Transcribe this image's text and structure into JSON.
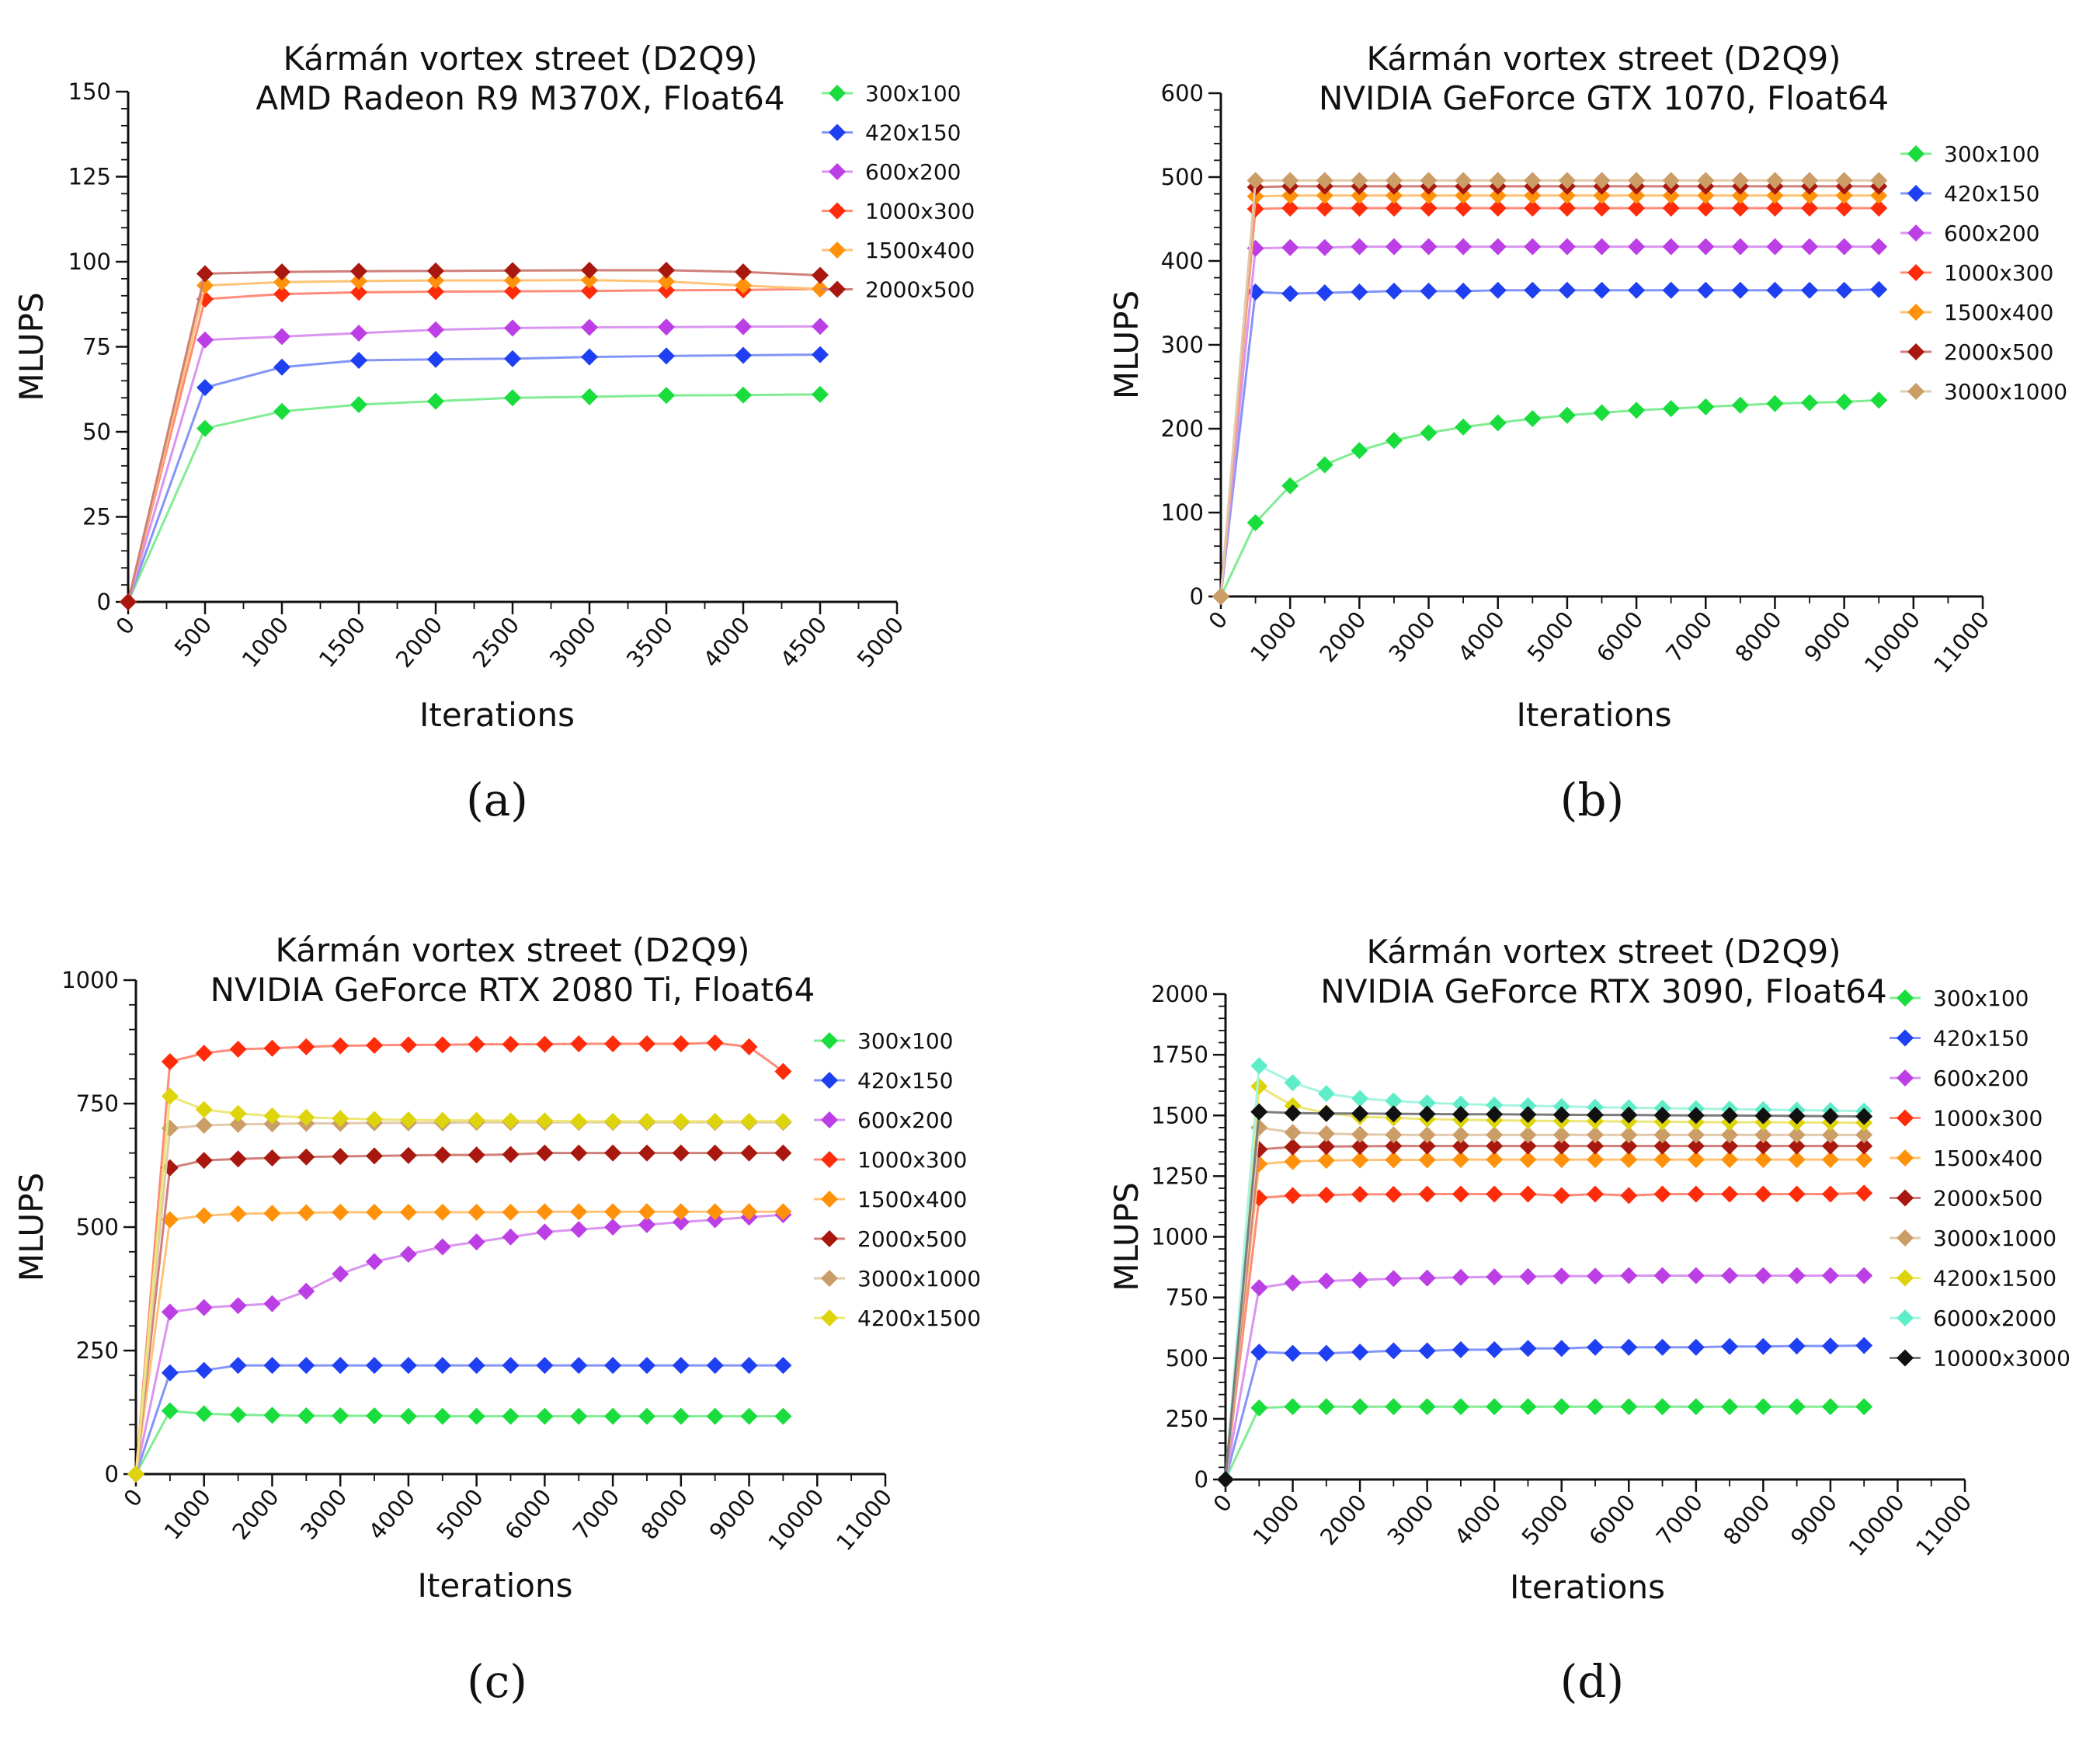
{
  "colors": {
    "300x100": "#19dd3c",
    "420x150": "#1f3ff2",
    "600x200": "#bc3fe6",
    "1000x300": "#ff2c0c",
    "1500x400": "#ff920a",
    "2000x500": "#a8180e",
    "3000x1000": "#cb9e68",
    "4200x1500": "#ded40c",
    "6000x2000": "#5eedc8",
    "10000x3000": "#111111"
  },
  "chart_data": [
    {
      "type": "line",
      "panel_label": "(a)",
      "title_lines": [
        "Kármán vortex street (D2Q9)",
        "AMD Radeon R9 M370X, Float64"
      ],
      "xlabel": "Iterations",
      "ylabel": "MLUPS",
      "xlim": [
        0,
        5000
      ],
      "ylim": [
        0,
        150
      ],
      "xticks": [
        "0",
        "500",
        "1000",
        "1500",
        "2000",
        "2500",
        "3000",
        "3500",
        "4000",
        "4500",
        "5000"
      ],
      "yticks": [
        "0",
        "25",
        "50",
        "75",
        "100",
        "125",
        "150"
      ],
      "x": [
        0,
        500,
        1000,
        1500,
        2000,
        2500,
        3000,
        3500,
        4000,
        4500
      ],
      "series": [
        {
          "name": "300x100",
          "values": [
            0,
            51,
            56,
            58,
            59,
            60,
            60.3,
            60.7,
            60.8,
            61
          ]
        },
        {
          "name": "420x150",
          "values": [
            0,
            63,
            69,
            71,
            71.3,
            71.5,
            72,
            72.3,
            72.5,
            72.7
          ]
        },
        {
          "name": "600x200",
          "values": [
            0,
            77,
            78,
            79,
            80,
            80.5,
            80.7,
            80.8,
            80.9,
            81
          ]
        },
        {
          "name": "1000x300",
          "values": [
            0,
            89,
            90.5,
            91,
            91.2,
            91.3,
            91.4,
            91.6,
            91.7,
            92
          ]
        },
        {
          "name": "1500x400",
          "values": [
            0,
            93,
            94,
            94.3,
            94.5,
            94.5,
            94.6,
            94.2,
            93,
            92
          ]
        },
        {
          "name": "2000x500",
          "values": [
            0,
            96.5,
            97,
            97.2,
            97.3,
            97.4,
            97.5,
            97.5,
            97,
            96
          ]
        }
      ]
    },
    {
      "type": "line",
      "panel_label": "(b)",
      "title_lines": [
        "Kármán vortex street (D2Q9)",
        "NVIDIA GeForce GTX 1070, Float64"
      ],
      "xlabel": "Iterations",
      "ylabel": "MLUPS",
      "xlim": [
        0,
        11000
      ],
      "ylim": [
        0,
        600
      ],
      "xticks": [
        "0",
        "1000",
        "2000",
        "3000",
        "4000",
        "5000",
        "6000",
        "7000",
        "8000",
        "9000",
        "10000",
        "11000"
      ],
      "yticks": [
        "0",
        "100",
        "200",
        "300",
        "400",
        "500",
        "600"
      ],
      "x": [
        0,
        500,
        1000,
        1500,
        2000,
        2500,
        3000,
        3500,
        4000,
        4500,
        5000,
        5500,
        6000,
        6500,
        7000,
        7500,
        8000,
        8500,
        9000,
        9500
      ],
      "series": [
        {
          "name": "300x100",
          "values": [
            0,
            88,
            132,
            157,
            174,
            186,
            195,
            202,
            207,
            212,
            216,
            219,
            222,
            224,
            226,
            228,
            230,
            231,
            232,
            234
          ]
        },
        {
          "name": "420x150",
          "values": [
            0,
            363,
            361,
            362,
            363,
            364,
            364,
            364,
            365,
            365,
            365,
            365,
            365,
            365,
            365,
            365,
            365,
            365,
            365,
            366
          ]
        },
        {
          "name": "600x200",
          "values": [
            0,
            415,
            416,
            416,
            417,
            417,
            417,
            417,
            417,
            417,
            417,
            417,
            417,
            417,
            417,
            417,
            417,
            417,
            417,
            417
          ]
        },
        {
          "name": "1000x300",
          "values": [
            0,
            462,
            463,
            463,
            463,
            463,
            463,
            463,
            463,
            463,
            463,
            463,
            463,
            463,
            463,
            463,
            463,
            463,
            463,
            463
          ]
        },
        {
          "name": "1500x400",
          "values": [
            0,
            477,
            478,
            478,
            478,
            478,
            478,
            478,
            478,
            478,
            478,
            478,
            478,
            478,
            478,
            478,
            478,
            478,
            478,
            478
          ]
        },
        {
          "name": "2000x500",
          "values": [
            0,
            488,
            489,
            489,
            489,
            489,
            489,
            489,
            489,
            489,
            489,
            489,
            489,
            489,
            489,
            489,
            489,
            489,
            489,
            489
          ]
        },
        {
          "name": "3000x1000",
          "values": [
            0,
            496,
            496,
            496,
            496,
            496,
            496,
            496,
            496,
            496,
            496,
            496,
            496,
            496,
            496,
            496,
            496,
            496,
            496,
            496
          ]
        }
      ]
    },
    {
      "type": "line",
      "panel_label": "(c)",
      "title_lines": [
        "Kármán vortex street (D2Q9)",
        "NVIDIA GeForce RTX 2080 Ti, Float64"
      ],
      "xlabel": "Iterations",
      "ylabel": "MLUPS",
      "xlim": [
        0,
        11000
      ],
      "ylim": [
        0,
        1000
      ],
      "xticks": [
        "0",
        "1000",
        "2000",
        "3000",
        "4000",
        "5000",
        "6000",
        "7000",
        "8000",
        "9000",
        "10000",
        "11000"
      ],
      "yticks": [
        "0",
        "250",
        "500",
        "750",
        "1000"
      ],
      "x": [
        0,
        500,
        1000,
        1500,
        2000,
        2500,
        3000,
        3500,
        4000,
        4500,
        5000,
        5500,
        6000,
        6500,
        7000,
        7500,
        8000,
        8500,
        9000,
        9500
      ],
      "series": [
        {
          "name": "300x100",
          "values": [
            0,
            128,
            122,
            120,
            119,
            118,
            118,
            118,
            117,
            117,
            117,
            117,
            117,
            117,
            117,
            117,
            117,
            117,
            117,
            117
          ]
        },
        {
          "name": "420x150",
          "values": [
            0,
            205,
            210,
            220,
            220,
            220,
            220,
            220,
            220,
            220,
            220,
            220,
            220,
            220,
            220,
            220,
            220,
            220,
            220,
            220
          ]
        },
        {
          "name": "600x200",
          "values": [
            0,
            328,
            337,
            341,
            345,
            370,
            405,
            430,
            445,
            460,
            470,
            480,
            490,
            495,
            500,
            505,
            510,
            515,
            520,
            525
          ]
        },
        {
          "name": "1000x300",
          "values": [
            0,
            835,
            852,
            860,
            862,
            865,
            867,
            868,
            869,
            869,
            870,
            870,
            870,
            871,
            871,
            871,
            871,
            873,
            865,
            815
          ]
        },
        {
          "name": "1500x400",
          "values": [
            0,
            515,
            523,
            527,
            528,
            529,
            530,
            530,
            530,
            530,
            530,
            530,
            531,
            531,
            531,
            531,
            531,
            531,
            531,
            531
          ]
        },
        {
          "name": "2000x500",
          "values": [
            0,
            620,
            635,
            638,
            640,
            642,
            643,
            644,
            645,
            646,
            646,
            647,
            650,
            650,
            650,
            650,
            650,
            650,
            650,
            650
          ]
        },
        {
          "name": "3000x1000",
          "values": [
            0,
            700,
            706,
            708,
            709,
            710,
            710,
            711,
            711,
            711,
            712,
            712,
            712,
            712,
            712,
            712,
            712,
            712,
            712,
            712
          ]
        },
        {
          "name": "4200x1500",
          "values": [
            0,
            765,
            738,
            730,
            725,
            722,
            720,
            718,
            717,
            716,
            716,
            715,
            715,
            714,
            714,
            714,
            714,
            714,
            714,
            714
          ]
        }
      ]
    },
    {
      "type": "line",
      "panel_label": "(d)",
      "title_lines": [
        "Kármán vortex street (D2Q9)",
        "NVIDIA GeForce RTX 3090, Float64"
      ],
      "xlabel": "Iterations",
      "ylabel": "MLUPS",
      "xlim": [
        0,
        11000
      ],
      "ylim": [
        0,
        2000
      ],
      "xticks": [
        "0",
        "1000",
        "2000",
        "3000",
        "4000",
        "5000",
        "6000",
        "7000",
        "8000",
        "9000",
        "10000",
        "11000"
      ],
      "yticks": [
        "0",
        "250",
        "500",
        "750",
        "1000",
        "1250",
        "1500",
        "1750",
        "2000"
      ],
      "x": [
        0,
        500,
        1000,
        1500,
        2000,
        2500,
        3000,
        3500,
        4000,
        4500,
        5000,
        5500,
        6000,
        6500,
        7000,
        7500,
        8000,
        8500,
        9000,
        9500
      ],
      "series": [
        {
          "name": "300x100",
          "values": [
            0,
            295,
            300,
            300,
            300,
            300,
            300,
            300,
            300,
            300,
            300,
            300,
            300,
            300,
            300,
            300,
            300,
            300,
            300,
            300
          ]
        },
        {
          "name": "420x150",
          "values": [
            0,
            525,
            520,
            520,
            525,
            530,
            530,
            535,
            535,
            540,
            540,
            545,
            545,
            545,
            545,
            548,
            548,
            550,
            550,
            552
          ]
        },
        {
          "name": "600x200",
          "values": [
            0,
            790,
            810,
            818,
            822,
            828,
            830,
            833,
            835,
            836,
            838,
            838,
            840,
            840,
            840,
            840,
            840,
            840,
            840,
            840
          ]
        },
        {
          "name": "1000x300",
          "values": [
            0,
            1160,
            1170,
            1172,
            1175,
            1175,
            1176,
            1176,
            1176,
            1176,
            1170,
            1176,
            1170,
            1176,
            1176,
            1176,
            1176,
            1176,
            1176,
            1180
          ]
        },
        {
          "name": "1500x400",
          "values": [
            0,
            1300,
            1310,
            1315,
            1316,
            1317,
            1317,
            1318,
            1318,
            1318,
            1318,
            1318,
            1318,
            1318,
            1318,
            1318,
            1318,
            1318,
            1318,
            1318
          ]
        },
        {
          "name": "2000x500",
          "values": [
            0,
            1360,
            1370,
            1372,
            1373,
            1374,
            1374,
            1374,
            1374,
            1374,
            1374,
            1374,
            1374,
            1374,
            1374,
            1374,
            1374,
            1374,
            1374,
            1374
          ]
        },
        {
          "name": "3000x1000",
          "values": [
            0,
            1450,
            1430,
            1425,
            1422,
            1420,
            1420,
            1420,
            1420,
            1420,
            1420,
            1420,
            1420,
            1420,
            1420,
            1420,
            1420,
            1420,
            1420,
            1420
          ]
        },
        {
          "name": "4200x1500",
          "values": [
            0,
            1620,
            1540,
            1510,
            1495,
            1490,
            1485,
            1482,
            1480,
            1478,
            1477,
            1476,
            1475,
            1474,
            1473,
            1472,
            1472,
            1471,
            1471,
            1470
          ]
        },
        {
          "name": "6000x2000",
          "values": [
            0,
            1705,
            1635,
            1590,
            1570,
            1560,
            1552,
            1547,
            1543,
            1540,
            1537,
            1534,
            1532,
            1530,
            1528,
            1526,
            1524,
            1522,
            1520,
            1518
          ]
        },
        {
          "name": "10000x3000",
          "values": [
            0,
            1515,
            1510,
            1508,
            1508,
            1507,
            1506,
            1505,
            1505,
            1504,
            1503,
            1502,
            1502,
            1501,
            1500,
            1500,
            1499,
            1498,
            1497,
            1496
          ]
        }
      ]
    }
  ]
}
